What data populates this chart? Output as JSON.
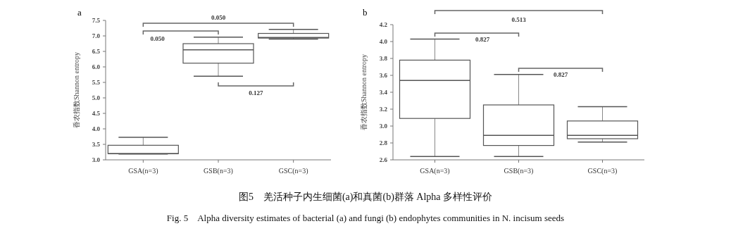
{
  "chart_data": [
    {
      "type": "box",
      "title": "a",
      "ylabel": "香农指数Shannon entropy",
      "categories": [
        "GSA(n=3)",
        "GSB(n=3)",
        "GSC(n=3)"
      ],
      "boxes": [
        {
          "low": 3.19,
          "q1": 3.2,
          "median": 3.2,
          "q3": 3.47,
          "high": 3.73
        },
        {
          "low": 5.7,
          "q1": 6.12,
          "median": 6.55,
          "q3": 6.75,
          "high": 6.96
        },
        {
          "low": 6.9,
          "q1": 6.93,
          "median": 6.95,
          "q3": 7.08,
          "high": 7.21
        }
      ],
      "ylim": [
        3.0,
        7.5
      ],
      "yticks": [
        {
          "value": 3,
          "label": "3.0"
        },
        3.5,
        {
          "value": 4,
          "label": "4.0"
        },
        4.5,
        {
          "value": 5,
          "label": "5.0"
        },
        5.5,
        {
          "value": 6,
          "label": "6.0"
        },
        6.5,
        {
          "value": 7,
          "label": "7.0"
        },
        7.5
      ],
      "grid": false,
      "annotations": [
        "0.050",
        "0.050",
        "0.127",
        "图5　羌活种子内生细菌(a)和真菌(b)群落 Alpha 多样性评价",
        "Fig. 5　Alpha diversity estimates of bacterial (a) and fungi (b) endophytes communities in N. incisum seeds"
      ]
    },
    {
      "type": "box",
      "title": "b",
      "ylabel": "香农指数Shannon entropy",
      "categories": [
        "GSA(n=3)",
        "GSB(n=3)",
        "GSC(n=3)"
      ],
      "boxes": [
        {
          "low": 2.64,
          "q1": 3.09,
          "median": 3.54,
          "q3": 3.78,
          "high": 4.03
        },
        {
          "low": 2.64,
          "q1": 2.77,
          "median": 2.89,
          "q3": 3.25,
          "high": 3.61
        },
        {
          "low": 2.81,
          "q1": 2.85,
          "median": 2.89,
          "q3": 3.06,
          "high": 3.23
        }
      ],
      "ylim": [
        2.6,
        4.2
      ],
      "yticks": [
        2.6,
        2.8,
        {
          "value": 3,
          "label": "3.0"
        },
        3.2,
        3.4,
        3.6,
        3.8,
        {
          "value": 4,
          "label": "4.0"
        },
        4.2
      ],
      "grid": false,
      "annotations": [
        "0.513",
        "0.827",
        "0.827"
      ]
    }
  ]
}
